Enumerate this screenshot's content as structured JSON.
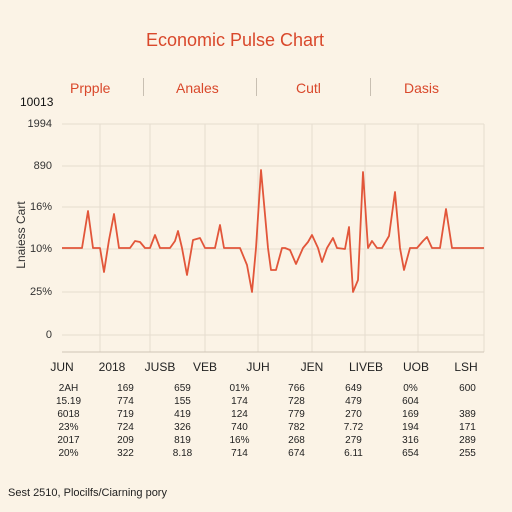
{
  "title": "Economic Pulse Chart",
  "headers": [
    "Prpple",
    "Anales",
    "Cutl",
    "Dasis"
  ],
  "top_label": "10013",
  "ylabel": "Lnaiess Cart",
  "chart_data": {
    "type": "line",
    "title": "Economic Pulse Chart",
    "xlabel": "",
    "ylabel": "Lnaiess Cart",
    "y_ticks": [
      "1994",
      "890",
      "16%",
      "10%",
      "25%",
      "0"
    ],
    "x_ticks": [
      "JUN",
      "2018",
      "JUSB",
      "VEB",
      "JUH",
      "JEN",
      "LIVEB",
      "UOB",
      "LSH"
    ],
    "grid": true,
    "series": [
      {
        "color": "#e2563a",
        "x": [
          0,
          25,
          27,
          30,
          35,
          37,
          40,
          45,
          50,
          52,
          56,
          60,
          65,
          70,
          75,
          80,
          85,
          90,
          92,
          95,
          98,
          100,
          102,
          104,
          106,
          110,
          112,
          115,
          117,
          120,
          125,
          130,
          135,
          140,
          145,
          150,
          155,
          160,
          165,
          170,
          175,
          180,
          187,
          190,
          193,
          195,
          198,
          200,
          203,
          205,
          210,
          215,
          220,
          225,
          230,
          235,
          240,
          245,
          250,
          255,
          260,
          265,
          270,
          273,
          276,
          280,
          283,
          286,
          290,
          295,
          297,
          300,
          302,
          305,
          310,
          315,
          320,
          325,
          330,
          335,
          340,
          345,
          350,
          360,
          365,
          370,
          375,
          380,
          385,
          390,
          400,
          420
        ],
        "y": [
          10,
          10,
          10,
          10,
          10,
          10,
          10,
          10,
          10,
          10,
          10,
          10,
          10,
          10,
          10,
          10,
          10,
          10,
          10,
          10,
          10,
          10,
          10,
          10,
          10,
          10,
          10,
          10,
          10,
          10,
          10,
          10,
          10,
          10,
          10,
          10,
          10,
          10,
          10,
          10,
          10,
          10,
          10,
          10,
          10,
          10,
          10,
          10,
          10,
          10,
          10,
          10,
          10,
          10,
          10,
          10,
          10,
          10,
          10,
          10,
          10,
          10,
          10,
          10,
          10,
          10,
          10,
          10,
          10,
          10,
          10,
          10,
          10,
          10,
          10,
          10,
          10,
          10,
          10,
          10,
          10,
          10,
          10,
          10,
          10,
          10,
          10,
          10,
          10,
          10,
          10,
          10
        ]
      }
    ]
  },
  "table": {
    "rows": [
      [
        "2AH",
        "169",
        "659",
        "01%",
        "766",
        "649",
        "0%",
        "600"
      ],
      [
        "15.19",
        "774",
        "155",
        "174",
        "728",
        "479",
        "604",
        ""
      ],
      [
        "6018",
        "719",
        "419",
        "124",
        "779",
        "270",
        "169",
        "389"
      ],
      [
        "23%",
        "724",
        "326",
        "740",
        "782",
        "7.72",
        "194",
        "171"
      ],
      [
        "2017",
        "209",
        "819",
        "16%",
        "268",
        "279",
        "316",
        "289"
      ],
      [
        "20%",
        "322",
        "8.18",
        "714",
        "674",
        "6.11",
        "654",
        "255"
      ]
    ]
  },
  "footer": "Sest 2510, Plocilfs/Ciarning pory"
}
